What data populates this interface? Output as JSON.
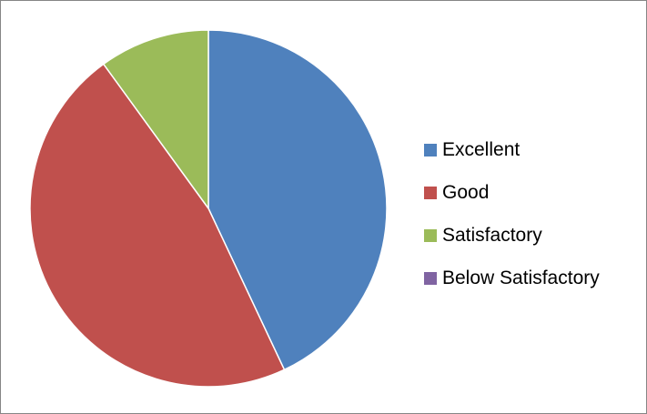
{
  "chart_data": {
    "type": "pie",
    "title": "",
    "series": [
      {
        "name": "",
        "labels": [
          "Excellent",
          "Good",
          "Satisfactory",
          "Below Satisfactory"
        ],
        "values": [
          43,
          47,
          10,
          0
        ],
        "colors": [
          "#4F81BD",
          "#C0504D",
          "#9BBB59",
          "#8064A2"
        ]
      }
    ],
    "start_angle_deg": 0,
    "direction": "clockwise",
    "slice_border_color": "#ffffff",
    "legend": {
      "position": "right",
      "items": [
        {
          "label": "Excellent",
          "color": "#4F81BD"
        },
        {
          "label": "Good",
          "color": "#C0504D"
        },
        {
          "label": "Satisfactory",
          "color": "#9BBB59"
        },
        {
          "label": "Below Satisfactory",
          "color": "#8064A2"
        }
      ]
    }
  }
}
